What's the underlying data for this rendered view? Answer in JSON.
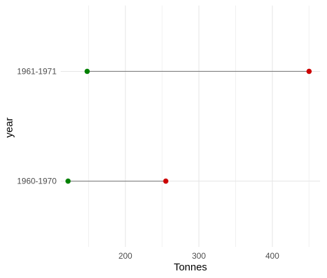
{
  "chart_data": {
    "type": "dumbbell",
    "title": "",
    "xlabel": "Tonnes",
    "ylabel": "year",
    "xlim": [
      112,
      465
    ],
    "x_ticks": [
      200,
      300,
      400
    ],
    "x_minor_ticks": [
      150,
      250,
      350,
      450
    ],
    "grid": true,
    "legend": "none",
    "categories": [
      "1960-1970",
      "1961-1971"
    ],
    "series": [
      {
        "values": [
          122,
          148
        ],
        "color": "#008000"
      },
      {
        "values": [
          255,
          450
        ],
        "color": "#cc0000"
      }
    ],
    "segment_color": "#7f7f7f"
  }
}
